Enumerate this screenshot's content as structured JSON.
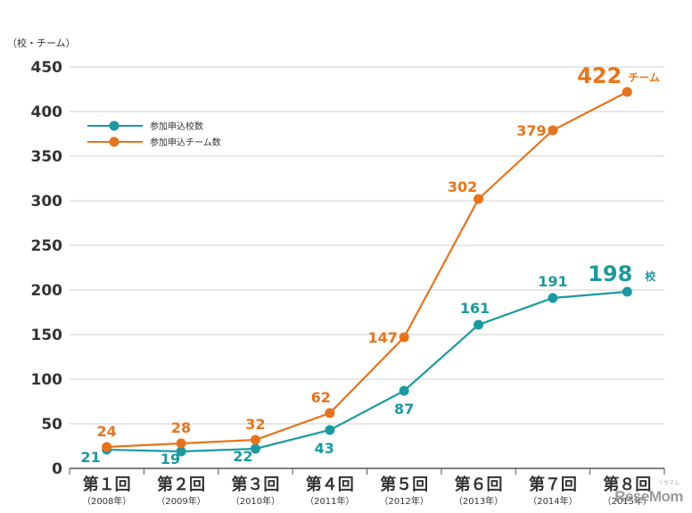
{
  "chart_data": {
    "type": "line",
    "unit_label": "（校・チーム）",
    "ylim": [
      0,
      450
    ],
    "yticks": [
      0,
      50,
      100,
      150,
      200,
      250,
      300,
      350,
      400,
      450
    ],
    "categories": [
      "第１回",
      "第２回",
      "第３回",
      "第４回",
      "第５回",
      "第６回",
      "第７回",
      "第８回"
    ],
    "category_years": [
      "（2008年）",
      "（2009年）",
      "（2010年）",
      "（2011年）",
      "（2012年）",
      "（2013年）",
      "（2014年）",
      "（2015年）"
    ],
    "series": [
      {
        "name": "参加申込校数",
        "color": "#1a9aa0",
        "values": [
          21,
          19,
          22,
          43,
          87,
          161,
          191,
          198
        ],
        "last_suffix": "校"
      },
      {
        "name": "参加申込チーム数",
        "color": "#e8731a",
        "values": [
          24,
          28,
          32,
          62,
          147,
          302,
          379,
          422
        ],
        "last_suffix": "チーム"
      }
    ],
    "grid": true,
    "legend_position": "top-left"
  },
  "watermark": {
    "text": "ReseMom",
    "subtext": "リセマム"
  }
}
